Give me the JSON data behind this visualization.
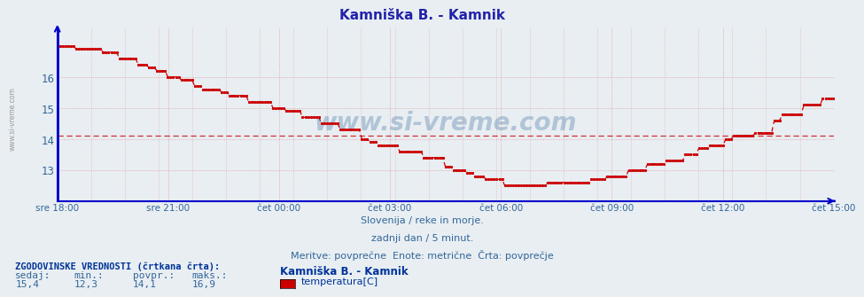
{
  "title": "Kamniška B. - Kamnik",
  "title_color": "#2222aa",
  "bg_color": "#e8eef2",
  "line_color": "#cc0000",
  "avg_value": 14.1,
  "y_min": 12.0,
  "y_max": 17.6,
  "y_ticks": [
    13,
    14,
    15,
    16
  ],
  "x_labels": [
    "sre 18:00",
    "sre 21:00",
    "čet 00:00",
    "čet 03:00",
    "čet 06:00",
    "čet 09:00",
    "čet 12:00",
    "čet 15:00"
  ],
  "watermark": "www.si-vreme.com",
  "subtitle1": "Slovenija / reke in morje.",
  "subtitle2": "zadnji dan / 5 minut.",
  "subtitle3": "Meritve: povprečne  Enote: metrične  Črta: povprečje",
  "footer_title": "ZGODOVINSKE VREDNOSTI (črtkana črta):",
  "footer_labels": [
    "sedaj:",
    "min.:",
    "povpr.:",
    "maks.:"
  ],
  "footer_values": [
    "15,4",
    "12,3",
    "14,1",
    "16,9"
  ],
  "footer_station": "Kamniška B. - Kamnik",
  "footer_legend": "temperatura[C]",
  "left_label": "www.si-vreme.com",
  "text_color": "#336699",
  "grid_color": "#dd9999",
  "n_points": 289
}
